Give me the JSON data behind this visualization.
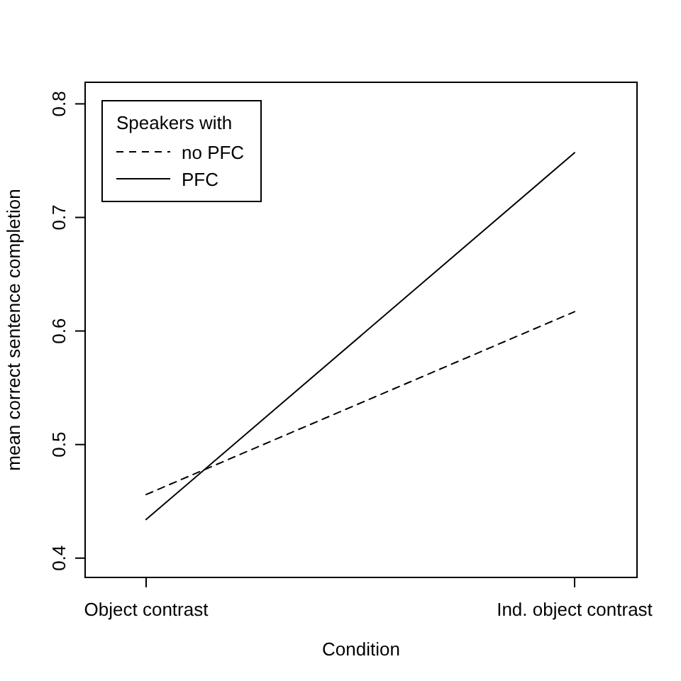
{
  "chart_data": {
    "type": "line",
    "xlabel": "Condition",
    "ylabel": "mean correct sentence completion",
    "legend_title": "Speakers with",
    "categories": [
      "Object contrast",
      "Ind. object contrast"
    ],
    "series": [
      {
        "name": "no PFC",
        "color": "#000000",
        "values": [
          0.456,
          0.617
        ],
        "line_style": "dashed"
      },
      {
        "name": "PFC",
        "color": "#000000",
        "values": [
          0.434,
          0.757
        ],
        "line_style": "solid"
      }
    ],
    "ylim": [
      0.383,
      0.819
    ],
    "yticks": [
      0.4,
      0.5,
      0.6,
      0.7,
      0.8
    ],
    "legend": "top left",
    "marker": "none"
  }
}
